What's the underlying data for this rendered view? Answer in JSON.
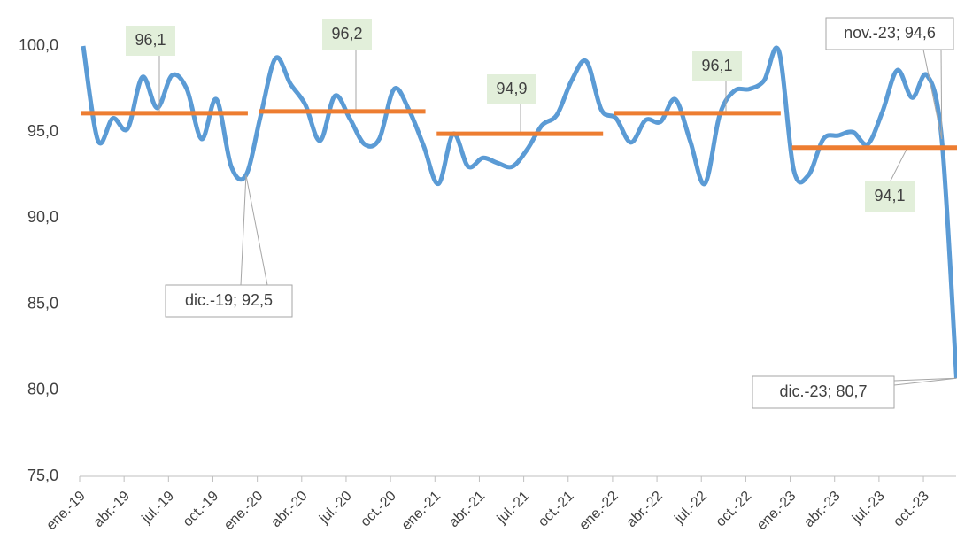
{
  "chart_data": {
    "type": "line",
    "categories": [
      "ene.-19",
      null,
      null,
      "abr.-19",
      null,
      null,
      "jul.-19",
      null,
      null,
      "oct.-19",
      null,
      null,
      "ene.-20",
      null,
      null,
      "abr.-20",
      null,
      null,
      "jul.-20",
      null,
      null,
      "oct.-20",
      null,
      null,
      "ene.-21",
      null,
      null,
      "abr.-21",
      null,
      null,
      "jul.-21",
      null,
      null,
      "oct.-21",
      null,
      null,
      "ene.-22",
      null,
      null,
      "abr.-22",
      null,
      null,
      "jul.-22",
      null,
      null,
      "oct.-22",
      null,
      null,
      "ene.-23",
      null,
      null,
      "abr.-23",
      null,
      null,
      "jul.-23",
      null,
      null,
      "oct.-23",
      null,
      null
    ],
    "series": [
      {
        "color": "#5b9bd5",
        "values": [
          100.0,
          94.5,
          95.8,
          95.2,
          98.2,
          96.4,
          98.3,
          97.5,
          94.6,
          96.9,
          93.0,
          92.5,
          96.0,
          99.3,
          97.8,
          96.6,
          94.5,
          97.1,
          95.8,
          94.3,
          94.6,
          97.5,
          96.3,
          94.2,
          92.0,
          94.9,
          93.0,
          93.5,
          93.2,
          93.0,
          94.0,
          95.4,
          96.0,
          98.0,
          99.1,
          96.3,
          95.8,
          94.4,
          95.7,
          95.6,
          96.9,
          94.5,
          92.0,
          96.0,
          97.4,
          97.5,
          98.0,
          99.7,
          92.8,
          92.5,
          94.6,
          94.8,
          95.0,
          94.3,
          96.2,
          98.6,
          97.0,
          98.3,
          94.6,
          80.7
        ],
        "value_labels": [
          null,
          null,
          null,
          null,
          null,
          null,
          null,
          null,
          null,
          null,
          null,
          "dic.-19; 92,5",
          null,
          null,
          null,
          null,
          null,
          null,
          null,
          null,
          null,
          null,
          null,
          null,
          null,
          null,
          null,
          null,
          null,
          null,
          null,
          null,
          null,
          null,
          null,
          null,
          null,
          null,
          null,
          null,
          null,
          null,
          null,
          null,
          null,
          null,
          null,
          null,
          null,
          null,
          null,
          null,
          null,
          null,
          null,
          null,
          null,
          null,
          "nov.-23; 94,6",
          "dic.-23; 80,7"
        ]
      }
    ],
    "averages": {
      "color": "#ed7d31",
      "values": [
        96.1,
        96.2,
        94.9,
        96.1,
        94.1
      ],
      "value_labels": [
        "96,1",
        "96,2",
        "94,9",
        "96,1",
        "94,1"
      ]
    },
    "ylim": [
      75,
      100
    ],
    "yticks": [
      {
        "value": 75,
        "label": "75,0"
      },
      {
        "value": 80,
        "label": "80,0"
      },
      {
        "value": 85,
        "label": "85,0"
      },
      {
        "value": 90,
        "label": "90,0"
      },
      {
        "value": 95,
        "label": "95,0"
      },
      {
        "value": 100,
        "label": "100,0"
      }
    ]
  }
}
